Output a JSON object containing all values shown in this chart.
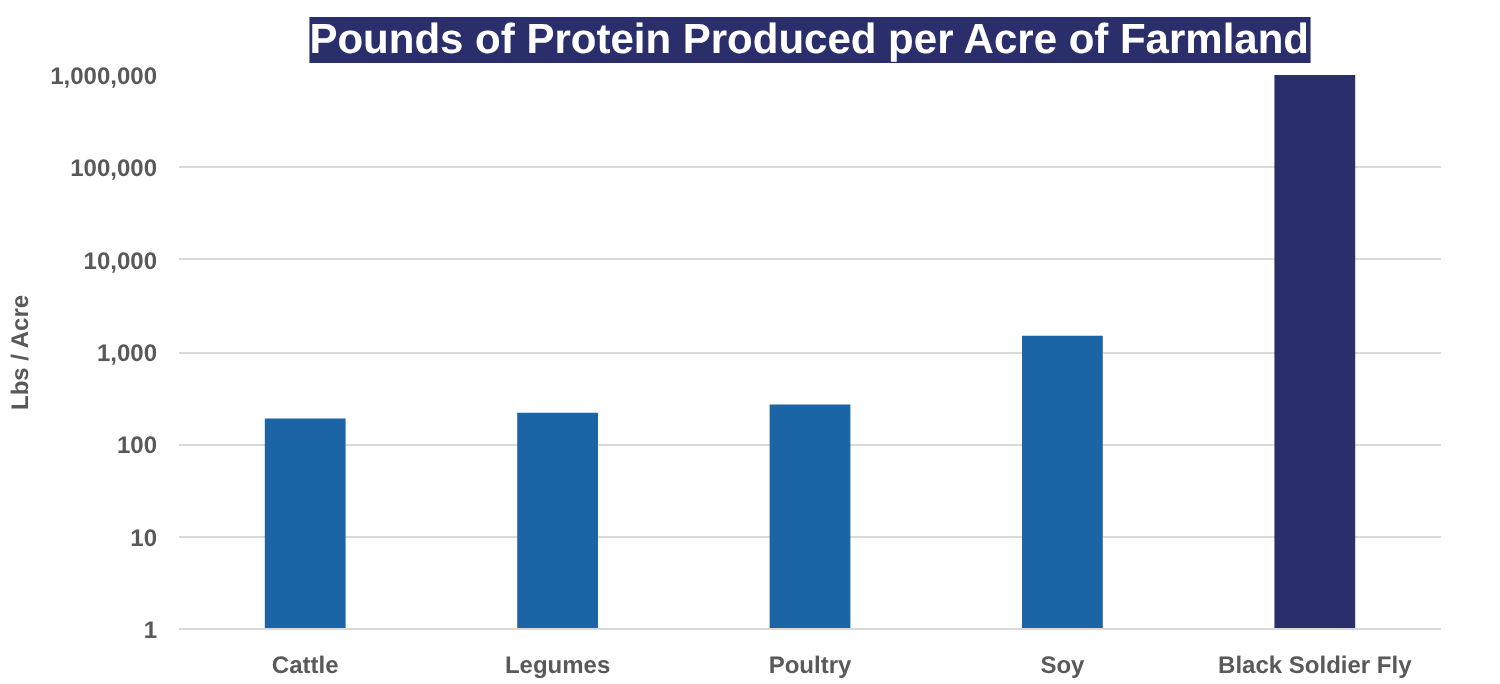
{
  "chart_data": {
    "type": "bar",
    "title": "Pounds of Protein Produced per Acre of Farmland",
    "ylabel": "Lbs / Acre",
    "categories": [
      "Cattle",
      "Legumes",
      "Poultry",
      "Soy",
      "Black Soldier Fly"
    ],
    "values": [
      190,
      220,
      270,
      1500,
      1000000
    ],
    "colors": [
      "#1b65a6",
      "#1b65a6",
      "#1b65a6",
      "#1b65a6",
      "#2a2e6b"
    ],
    "log": true,
    "ylim": [
      1,
      1000000
    ],
    "yticks": [
      1,
      10,
      100,
      {
        "value": 1000,
        "label": "1,000"
      },
      {
        "value": 10000,
        "label": "10,000"
      },
      {
        "value": 100000,
        "label": "100,000"
      },
      {
        "value": 1000000,
        "label": "1,000,000"
      }
    ],
    "grid": "y"
  }
}
